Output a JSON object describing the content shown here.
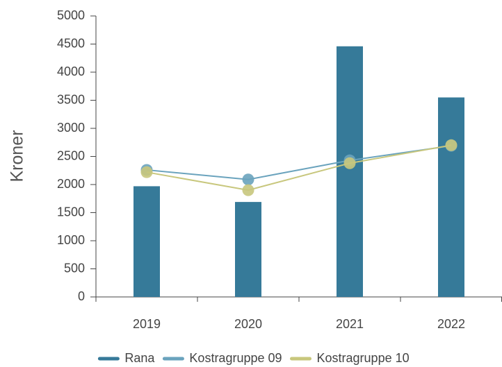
{
  "chart_data": {
    "type": "bar",
    "ylabel": "Kroner",
    "categories": [
      "2019",
      "2020",
      "2021",
      "2022"
    ],
    "series": [
      {
        "name": "Rana",
        "type": "bar",
        "color": "#367a99",
        "values": [
          1970,
          1690,
          4460,
          3550
        ]
      },
      {
        "name": "Kostragruppe 09",
        "type": "line",
        "color": "#6aa3bd",
        "values": [
          2260,
          2090,
          2430,
          2690
        ]
      },
      {
        "name": "Kostragruppe 10",
        "type": "line",
        "color": "#c8c77d",
        "values": [
          2220,
          1900,
          2380,
          2700
        ]
      }
    ],
    "ylim": [
      0,
      5000
    ],
    "yticks": [
      0,
      500,
      1000,
      1500,
      2000,
      2500,
      3000,
      3500,
      4000,
      4500,
      5000
    ],
    "grid": false,
    "legend": "bottom"
  }
}
